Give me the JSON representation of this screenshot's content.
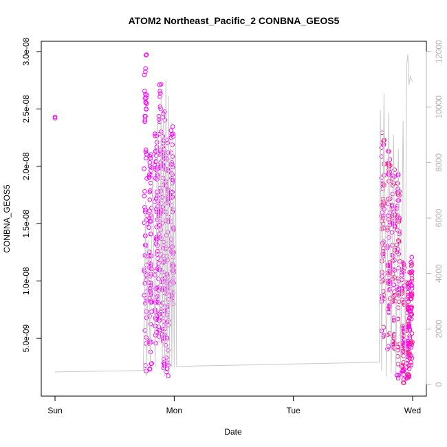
{
  "chart_data": {
    "type": "scatter",
    "title": "ATOM2 Northeast_Pacific_2 CONBNA_GEOS5",
    "xlabel": "Date",
    "ylabel": "CONBNA_GEOS5",
    "x_ticks": [
      "Sun",
      "Mon",
      "Tue",
      "Wed"
    ],
    "xlim": [
      0,
      3.0
    ],
    "ylim": [
      0,
      3.05e-08
    ],
    "y_ticks": [
      "5.0e-09",
      "1.0e-08",
      "1.5e-08",
      "2.0e-08",
      "2.5e-08",
      "3.0e-08"
    ],
    "y_tick_values": [
      5e-09,
      1e-08,
      1.5e-08,
      2e-08,
      2.5e-08,
      3e-08
    ],
    "y2lim": [
      0,
      12000
    ],
    "y2_ticks": [
      "0",
      "2000",
      "4000",
      "6000",
      "8000",
      "10000",
      "12000"
    ],
    "y2_tick_values": [
      0,
      2000,
      4000,
      6000,
      8000,
      10000,
      12000
    ],
    "grid": false,
    "series": [
      {
        "role": "points",
        "marker": "open-circle",
        "colors": [
          "#ff00ff",
          "#ff1493"
        ],
        "groups": [
          {
            "x": [
              0.0,
              0.0
            ],
            "y": [
              2.42e-08,
              2.43e-08
            ]
          },
          {
            "x_range": [
              0.74,
              1.02
            ],
            "y_range": [
              1.5e-09,
              2.98e-08
            ],
            "n": 420,
            "clusters": [
              {
                "x": 0.76,
                "y_min": 2e-09,
                "y_max": 2.98e-08
              },
              {
                "x": 0.8,
                "y_min": 2.2e-09,
                "y_max": 2.12e-08
              },
              {
                "x": 0.85,
                "y_min": 4.5e-09,
                "y_max": 2.3e-08
              },
              {
                "x": 0.88,
                "y_min": 5e-09,
                "y_max": 2.8e-08
              },
              {
                "x": 0.91,
                "y_min": 2.3e-09,
                "y_max": 2.48e-08
              },
              {
                "x": 0.94,
                "y_min": 1.5e-09,
                "y_max": 2.3e-08
              },
              {
                "x": 0.985,
                "y_min": 8e-09,
                "y_max": 2.45e-08
              }
            ]
          },
          {
            "x_range": [
              2.73,
              2.99
            ],
            "y_range": [
              1e-09,
              2.3e-08
            ],
            "n": 380,
            "clusters": [
              {
                "x": 2.75,
                "y_min": 5e-09,
                "y_max": 2.3e-08
              },
              {
                "x": 2.8,
                "y_min": 3e-09,
                "y_max": 2.2e-08
              },
              {
                "x": 2.84,
                "y_min": 4e-09,
                "y_max": 2e-08
              },
              {
                "x": 2.88,
                "y_min": 1.5e-09,
                "y_max": 1.95e-08
              },
              {
                "x": 2.92,
                "y_min": 1e-09,
                "y_max": 1.2e-08
              },
              {
                "x": 2.96,
                "y_min": 1.5e-09,
                "y_max": 1e-08
              },
              {
                "x": 2.985,
                "y_min": 2.5e-09,
                "y_max": 1.22e-08
              }
            ]
          }
        ]
      },
      {
        "role": "altitude-line",
        "axis": "y2",
        "color": "#c8c8c8",
        "x": [
          0.0,
          0.74,
          0.75,
          0.76,
          0.77,
          0.78,
          0.8,
          0.82,
          0.84,
          0.86,
          0.88,
          0.89,
          0.9,
          0.91,
          0.92,
          0.93,
          0.94,
          0.95,
          0.96,
          0.97,
          0.98,
          0.99,
          1.0,
          1.01,
          1.02,
          2.72,
          2.73,
          2.74,
          2.76,
          2.78,
          2.8,
          2.82,
          2.84,
          2.86,
          2.88,
          2.9,
          2.92,
          2.94,
          2.95,
          2.96,
          2.97,
          2.98,
          2.99,
          3.0
        ],
        "y": [
          450,
          500,
          2800,
          6600,
          300,
          5200,
          700,
          8100,
          600,
          9700,
          1500,
          10500,
          800,
          9800,
          300,
          11000,
          600,
          10400,
          500,
          8800,
          600,
          9000,
          600,
          9100,
          650,
          800,
          9900,
          500,
          10500,
          300,
          9800,
          400,
          9000,
          300,
          8500,
          500,
          9500,
          600,
          11500,
          11900,
          10800,
          11100,
          11000,
          10900
        ]
      }
    ]
  }
}
